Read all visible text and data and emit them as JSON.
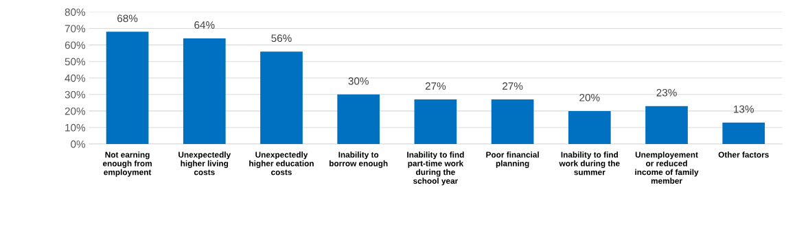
{
  "chart_data": {
    "type": "bar",
    "categories": [
      "Not earning\nenough from\nemployment",
      "Unexpectedly\nhigher living\ncosts",
      "Unexpectedly\nhigher education\ncosts",
      "Inability to\nborrow enough",
      "Inability to find\npart-time work\nduring the\nschool year",
      "Poor financial\nplanning",
      "Inability to find\nwork during the\nsummer",
      "Unemployement\nor reduced\nincome of family\nmember",
      "Other factors"
    ],
    "values": [
      68,
      64,
      56,
      30,
      27,
      27,
      20,
      23,
      13
    ],
    "value_labels": [
      "68%",
      "64%",
      "56%",
      "30%",
      "27%",
      "27%",
      "20%",
      "23%",
      "13%"
    ],
    "color": "#0070c0",
    "ylim": [
      0,
      80
    ],
    "yticks": [
      {
        "value": 0,
        "label": "0%"
      },
      {
        "value": 10,
        "label": "10%"
      },
      {
        "value": 20,
        "label": "20%"
      },
      {
        "value": 30,
        "label": "30%"
      },
      {
        "value": 40,
        "label": "40%"
      },
      {
        "value": 50,
        "label": "50%"
      },
      {
        "value": 60,
        "label": "60%"
      },
      {
        "value": 70,
        "label": "70%"
      },
      {
        "value": 80,
        "label": "80%"
      }
    ],
    "grid": "y"
  }
}
